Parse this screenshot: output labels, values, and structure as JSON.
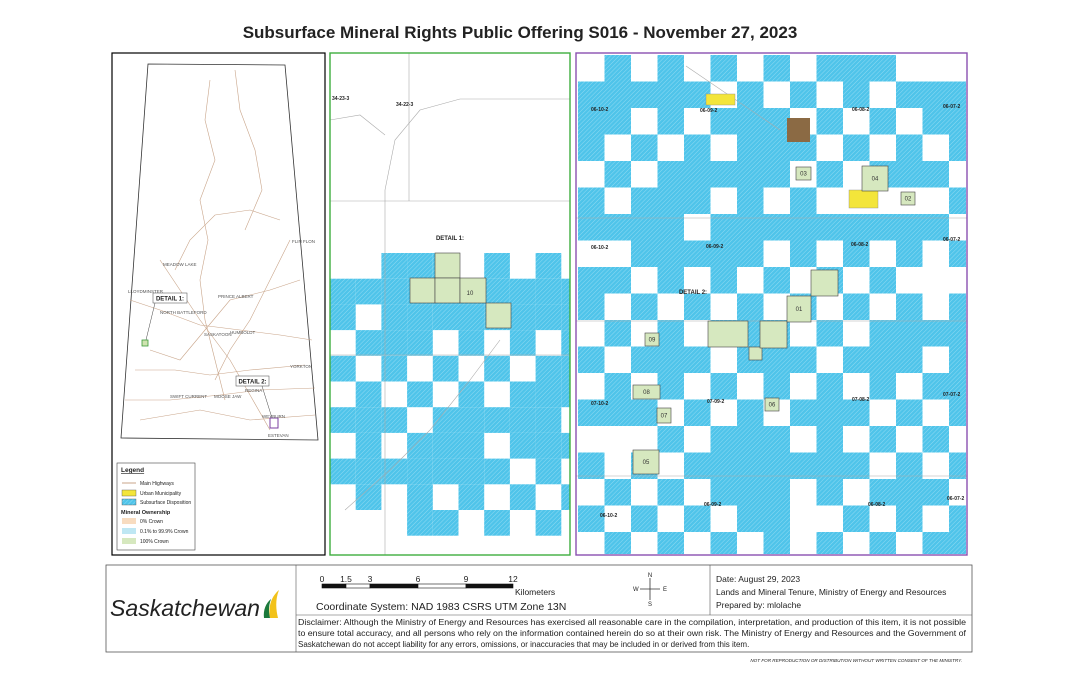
{
  "title": "Subsurface Mineral Rights Public Offering S016 - November 27, 2023",
  "overview": {
    "detail_1": "DETAIL 1:",
    "detail_2": "DETAIL 2:",
    "places": [
      "MEADOW LAKE",
      "LLOYDMINSTER",
      "NORTH BATTLEFORD",
      "PRINCE ALBERT",
      "SASKATOON",
      "HUMBOLDT",
      "FLIN FLON",
      "YORKTON",
      "MOOSE JAW",
      "REGINA",
      "SWIFT CURRENT",
      "WEYBURN",
      "ESTEVAN"
    ]
  },
  "legend": {
    "title": "Legend",
    "items": [
      "Main Highways",
      "Urban Municipality",
      "Subsurface Disposition"
    ],
    "ownership_title": "Mineral Ownership",
    "ownership": [
      "0% Crown",
      "0.1% to 99.9% Crown",
      "100% Crown"
    ]
  },
  "detail_1": {
    "label": "DETAIL 1:",
    "parcels": [
      "10"
    ],
    "townships": [
      "34-23-3",
      "34-22-3"
    ]
  },
  "detail_2": {
    "label": "DETAIL 2:",
    "parcels": [
      "01",
      "02",
      "03",
      "04",
      "05",
      "06",
      "07",
      "08",
      "09"
    ],
    "townships": [
      "06-10-2",
      "06-09-2",
      "06-08-2",
      "06-07-2",
      "06-10-2",
      "06-09-2",
      "06-08-2",
      "06-07-2",
      "07-10-2",
      "07-09-2",
      "07-08-2",
      "07-07-2",
      "06-10-2",
      "06-09-2",
      "06-08-2",
      "06-07-2"
    ]
  },
  "footer": {
    "scale_ticks": [
      "0",
      "1.5",
      "3",
      "6",
      "9",
      "12"
    ],
    "scale_unit": "Kilometers",
    "coordinate_system": "Coordinate System: NAD 1983 CSRS UTM Zone 13N",
    "logo": "Saskatchewan",
    "compass": [
      "N",
      "E",
      "S",
      "W"
    ],
    "date": "Date: August 29, 2023",
    "agency": "Lands and Mineral Tenure,  Ministry of Energy and Resources",
    "prepared_by": "Prepared by: mlolache",
    "disclaimer": [
      "Disclaimer: Although the Ministry of Energy and Resources has exercised all reasonable care in the compilation, interpretation, and production of this item, it is not possible",
      "to ensure total accuracy, and all persons who rely on the information contained herein do so at their own risk. The Ministry of Energy and Resources and the Government of",
      "Saskatchewan do not accept liability for any errors, omissions, or inaccuracies that may be included in or derived from this item."
    ],
    "note": "NOT FOR REPRODUCTION OR DISTRIBUTION WITHOUT WRITTEN CONSENT OF THE MINISTRY."
  }
}
